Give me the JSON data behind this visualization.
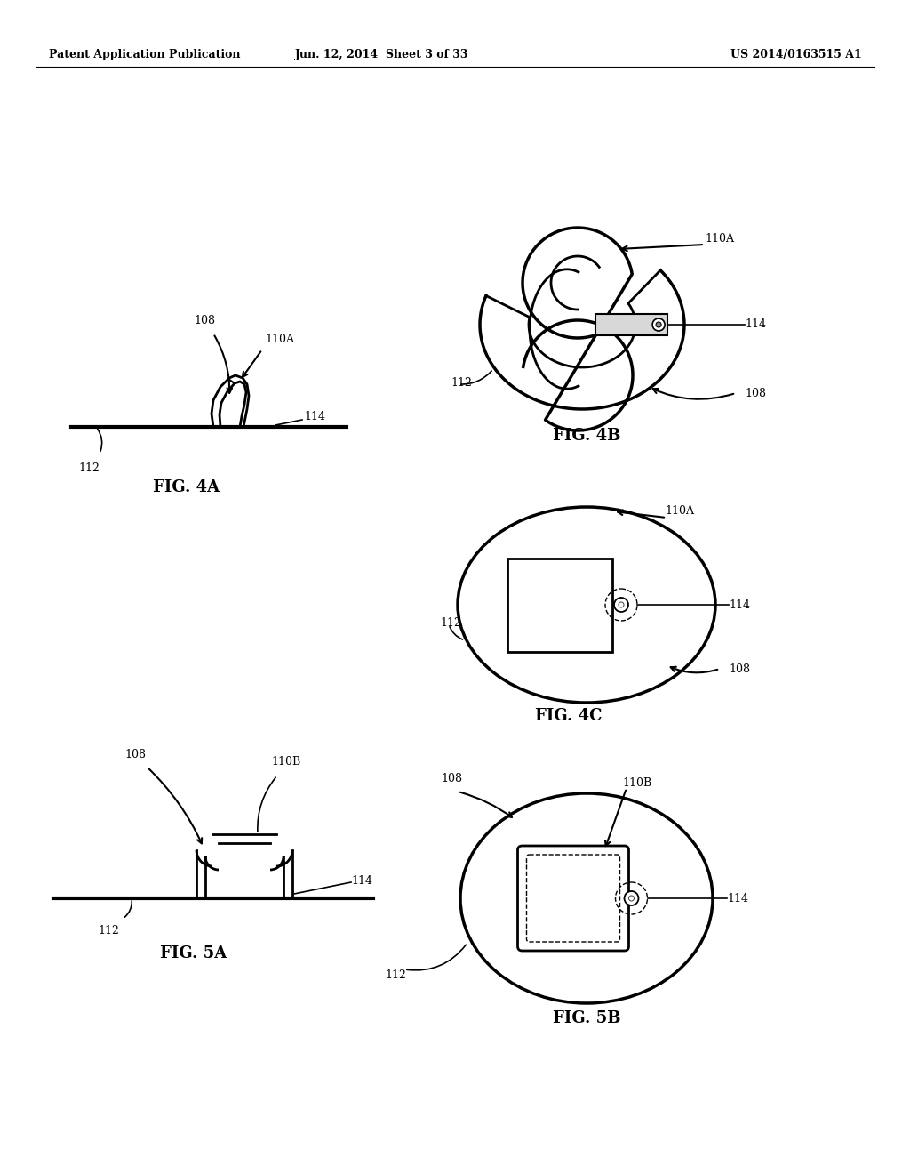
{
  "bg_color": "#ffffff",
  "text_color": "#000000",
  "header_left": "Patent Application Publication",
  "header_center": "Jun. 12, 2014  Sheet 3 of 33",
  "header_right": "US 2014/0163515 A1",
  "fig4a_label": "FIG. 4A",
  "fig4b_label": "FIG. 4B",
  "fig4c_label": "FIG. 4C",
  "fig5a_label": "FIG. 5A",
  "fig5b_label": "FIG. 5B",
  "line_color": "#000000",
  "line_width": 2.0
}
